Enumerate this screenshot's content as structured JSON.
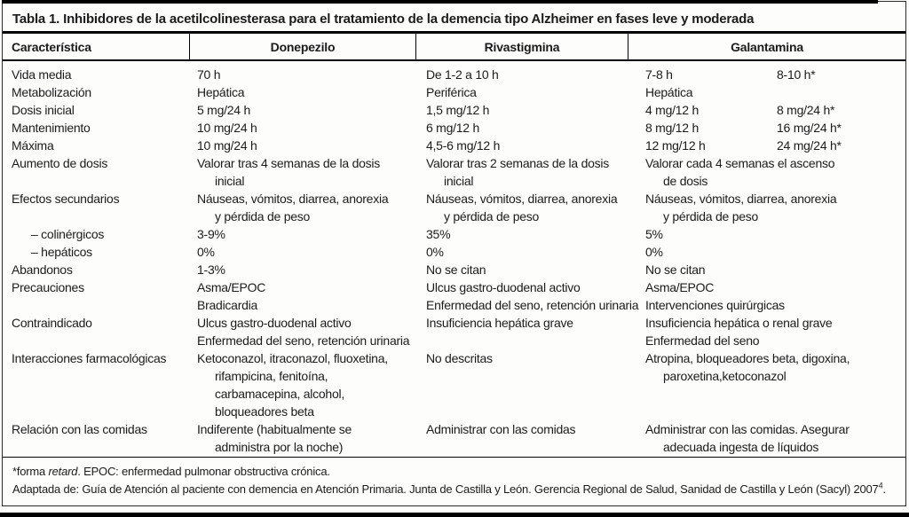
{
  "colors": {
    "text": "#1b1b1b",
    "border": "#000000",
    "background": "#fdfdfc"
  },
  "table": {
    "title": "Tabla 1. Inhibidores de la acetilcolinesterasa para el tratamiento de la demencia tipo Alzheimer en fases leve y moderada",
    "columns": [
      "Característica",
      "Donepezilo",
      "Rivastigmina",
      "Galantamina"
    ],
    "rows": [
      {
        "label": "Vida media",
        "donepezilo": [
          {
            "text": "70 h"
          }
        ],
        "rivastigmina": [
          {
            "text": "De 1-2 a 10 h"
          }
        ],
        "galantamina": [
          {
            "text": "7-8 h"
          }
        ],
        "galantamina_retard": [
          {
            "text": "8-10 h*"
          }
        ]
      },
      {
        "label": "Metabolización",
        "donepezilo": [
          {
            "text": "Hepática"
          }
        ],
        "rivastigmina": [
          {
            "text": "Periférica"
          }
        ],
        "galantamina": [
          {
            "text": "Hepática"
          }
        ]
      },
      {
        "label": "Dosis inicial",
        "donepezilo": [
          {
            "text": "5 mg/24 h"
          }
        ],
        "rivastigmina": [
          {
            "text": "1,5 mg/12 h"
          }
        ],
        "galantamina": [
          {
            "text": "4 mg/12 h"
          }
        ],
        "galantamina_retard": [
          {
            "text": "8 mg/24 h*"
          }
        ]
      },
      {
        "label": "Mantenimiento",
        "donepezilo": [
          {
            "text": "10 mg/24 h"
          }
        ],
        "rivastigmina": [
          {
            "text": "6 mg/12 h"
          }
        ],
        "galantamina": [
          {
            "text": "8 mg/12 h"
          }
        ],
        "galantamina_retard": [
          {
            "text": "16 mg/24 h*"
          }
        ]
      },
      {
        "label": "Máxima",
        "donepezilo": [
          {
            "text": "10 mg/24 h"
          }
        ],
        "rivastigmina": [
          {
            "text": "4,5-6 mg/12 h"
          }
        ],
        "galantamina": [
          {
            "text": "12 mg/12 h"
          }
        ],
        "galantamina_retard": [
          {
            "text": "24 mg/24 h*"
          }
        ]
      },
      {
        "label": "Aumento de dosis",
        "donepezilo": [
          {
            "text": "Valorar tras 4 semanas de la dosis"
          },
          {
            "text": "inicial",
            "indent": true
          }
        ],
        "rivastigmina": [
          {
            "text": "Valorar tras 2 semanas de la dosis"
          },
          {
            "text": "inicial",
            "indent": true
          }
        ],
        "galantamina": [
          {
            "text": "Valorar cada 4 semanas el ascenso"
          },
          {
            "text": "de dosis",
            "indent": true
          }
        ]
      },
      {
        "label": "Efectos secundarios",
        "donepezilo": [
          {
            "text": "Náuseas, vómitos, diarrea, anorexia"
          },
          {
            "text": "y pérdida de peso",
            "indent": true
          }
        ],
        "rivastigmina": [
          {
            "text": "Náuseas, vómitos, diarrea, anorexia"
          },
          {
            "text": "y pérdida de peso",
            "indent": true
          }
        ],
        "galantamina": [
          {
            "text": "Náuseas, vómitos, diarrea, anorexia"
          },
          {
            "text": "y pérdida de peso",
            "indent": true
          }
        ]
      },
      {
        "label": "– colinérgicos",
        "sub": true,
        "donepezilo": [
          {
            "text": "3-9%"
          }
        ],
        "rivastigmina": [
          {
            "text": "35%"
          }
        ],
        "galantamina": [
          {
            "text": "5%"
          }
        ]
      },
      {
        "label": "– hepáticos",
        "sub": true,
        "donepezilo": [
          {
            "text": "0%"
          }
        ],
        "rivastigmina": [
          {
            "text": "0%"
          }
        ],
        "galantamina": [
          {
            "text": "0%"
          }
        ]
      },
      {
        "label": "Abandonos",
        "donepezilo": [
          {
            "text": "1-3%"
          }
        ],
        "rivastigmina": [
          {
            "text": "No se citan"
          }
        ],
        "galantamina": [
          {
            "text": "No se citan"
          }
        ]
      },
      {
        "label": "Precauciones",
        "donepezilo": [
          {
            "text": "Asma/EPOC"
          },
          {
            "text": "Bradicardia"
          }
        ],
        "rivastigmina": [
          {
            "text": "Ulcus gastro-duodenal activo"
          },
          {
            "text": "Enfermedad del seno, retención urinaria"
          }
        ],
        "galantamina": [
          {
            "text": "Asma/EPOC"
          },
          {
            "text": "Intervenciones quirúrgicas"
          }
        ]
      },
      {
        "label": "Contraindicado",
        "donepezilo": [
          {
            "text": "Ulcus gastro-duodenal activo"
          },
          {
            "text": "Enfermedad del seno, retención urinaria"
          }
        ],
        "rivastigmina": [
          {
            "text": "Insuficiencia hepática grave"
          }
        ],
        "galantamina": [
          {
            "text": "Insuficiencia hepática o renal grave"
          },
          {
            "text": "Enfermedad del seno"
          }
        ]
      },
      {
        "label": "Interacciones farmacológicas",
        "donepezilo": [
          {
            "text": "Ketoconazol, itraconazol, fluoxetina,"
          },
          {
            "text": "rifampicina, fenitoína,",
            "indent": true
          },
          {
            "text": "carbamacepina, alcohol,",
            "indent": true
          },
          {
            "text": "bloqueadores beta",
            "indent": true
          }
        ],
        "rivastigmina": [
          {
            "text": "No descritas"
          }
        ],
        "galantamina": [
          {
            "text": "Atropina, bloqueadores beta, digoxina,"
          },
          {
            "text": "paroxetina,ketoconazol",
            "indent": true
          }
        ]
      },
      {
        "label": "Relación con las comidas",
        "donepezilo": [
          {
            "text": "Indiferente (habitualmente se"
          },
          {
            "text": "administra por la noche)",
            "indent": true
          }
        ],
        "rivastigmina": [
          {
            "text": "Administrar con las comidas"
          }
        ],
        "galantamina": [
          {
            "text": "Administrar con las comidas. Asegurar"
          },
          {
            "text": "adecuada ingesta de líquidos",
            "indent": true
          }
        ]
      }
    ],
    "footnotes": [
      {
        "parts": [
          {
            "text": "*forma "
          },
          {
            "text": "retard",
            "style": "italic"
          },
          {
            "text": ". EPOC: enfermedad pulmonar obstructiva crónica."
          }
        ]
      },
      {
        "parts": [
          {
            "text": "Adaptada de: Guía de Atención al paciente con demencia en Atención Primaria. Junta de Castilla y León. Gerencia Regional de Salud, Sanidad de Castilla y León (Sacyl) 2007"
          },
          {
            "text": "4",
            "style": "sup"
          },
          {
            "text": "."
          }
        ]
      }
    ]
  }
}
